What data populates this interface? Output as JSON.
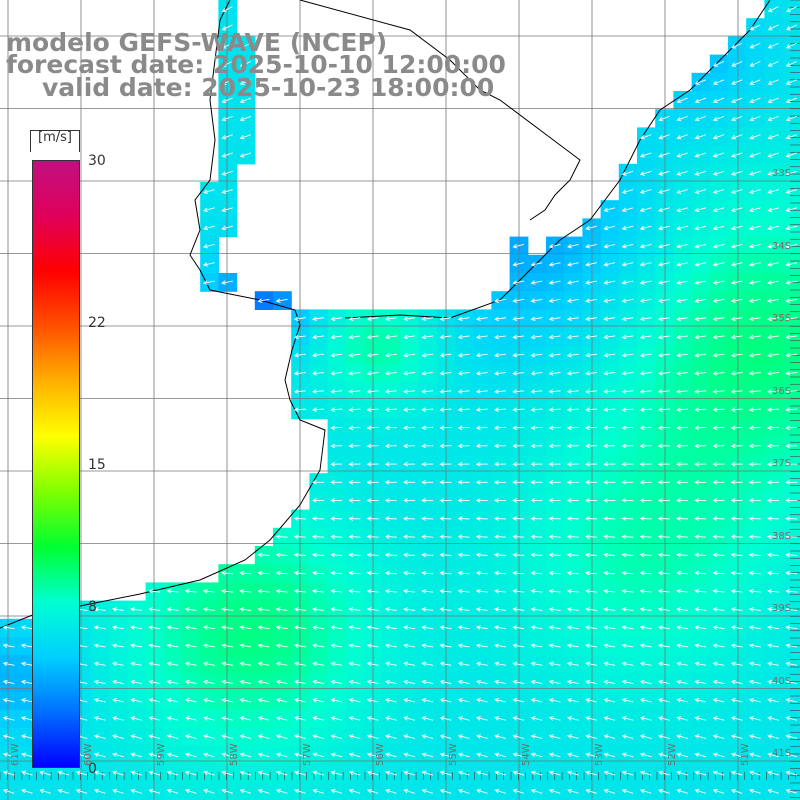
{
  "title": {
    "line1": "modelo GEFS-WAVE (NCEP)",
    "line2": "forecast date: 2025-10-10 12:00:00",
    "line3": "valid date: 2025-10-23 18:00:00"
  },
  "legend": {
    "unit": "[m/s]",
    "ticks": [
      "30",
      "22",
      "15",
      "8",
      "0"
    ],
    "tick_values": [
      30,
      22,
      15,
      8,
      0
    ],
    "colors": [
      "#0000ff",
      "#0070ff",
      "#00d0ff",
      "#00ffd0",
      "#00ff30",
      "#80ff00",
      "#ffff00",
      "#ffb000",
      "#ff5000",
      "#ff0000",
      "#e0005a",
      "#c01080"
    ]
  },
  "map": {
    "lat_labels": [
      "33S",
      "34S",
      "35S",
      "36S",
      "37S",
      "38S",
      "39S",
      "40S",
      "41S"
    ],
    "lon_labels": [
      "61W",
      "60W",
      "59W",
      "58W",
      "57W",
      "56W",
      "55W",
      "54W",
      "53W",
      "52W",
      "51W"
    ],
    "variable": "wind speed and direction",
    "land_color": "#ffffff",
    "wind_direction": "from north-east",
    "speed_range_ms": [
      2,
      12
    ]
  }
}
